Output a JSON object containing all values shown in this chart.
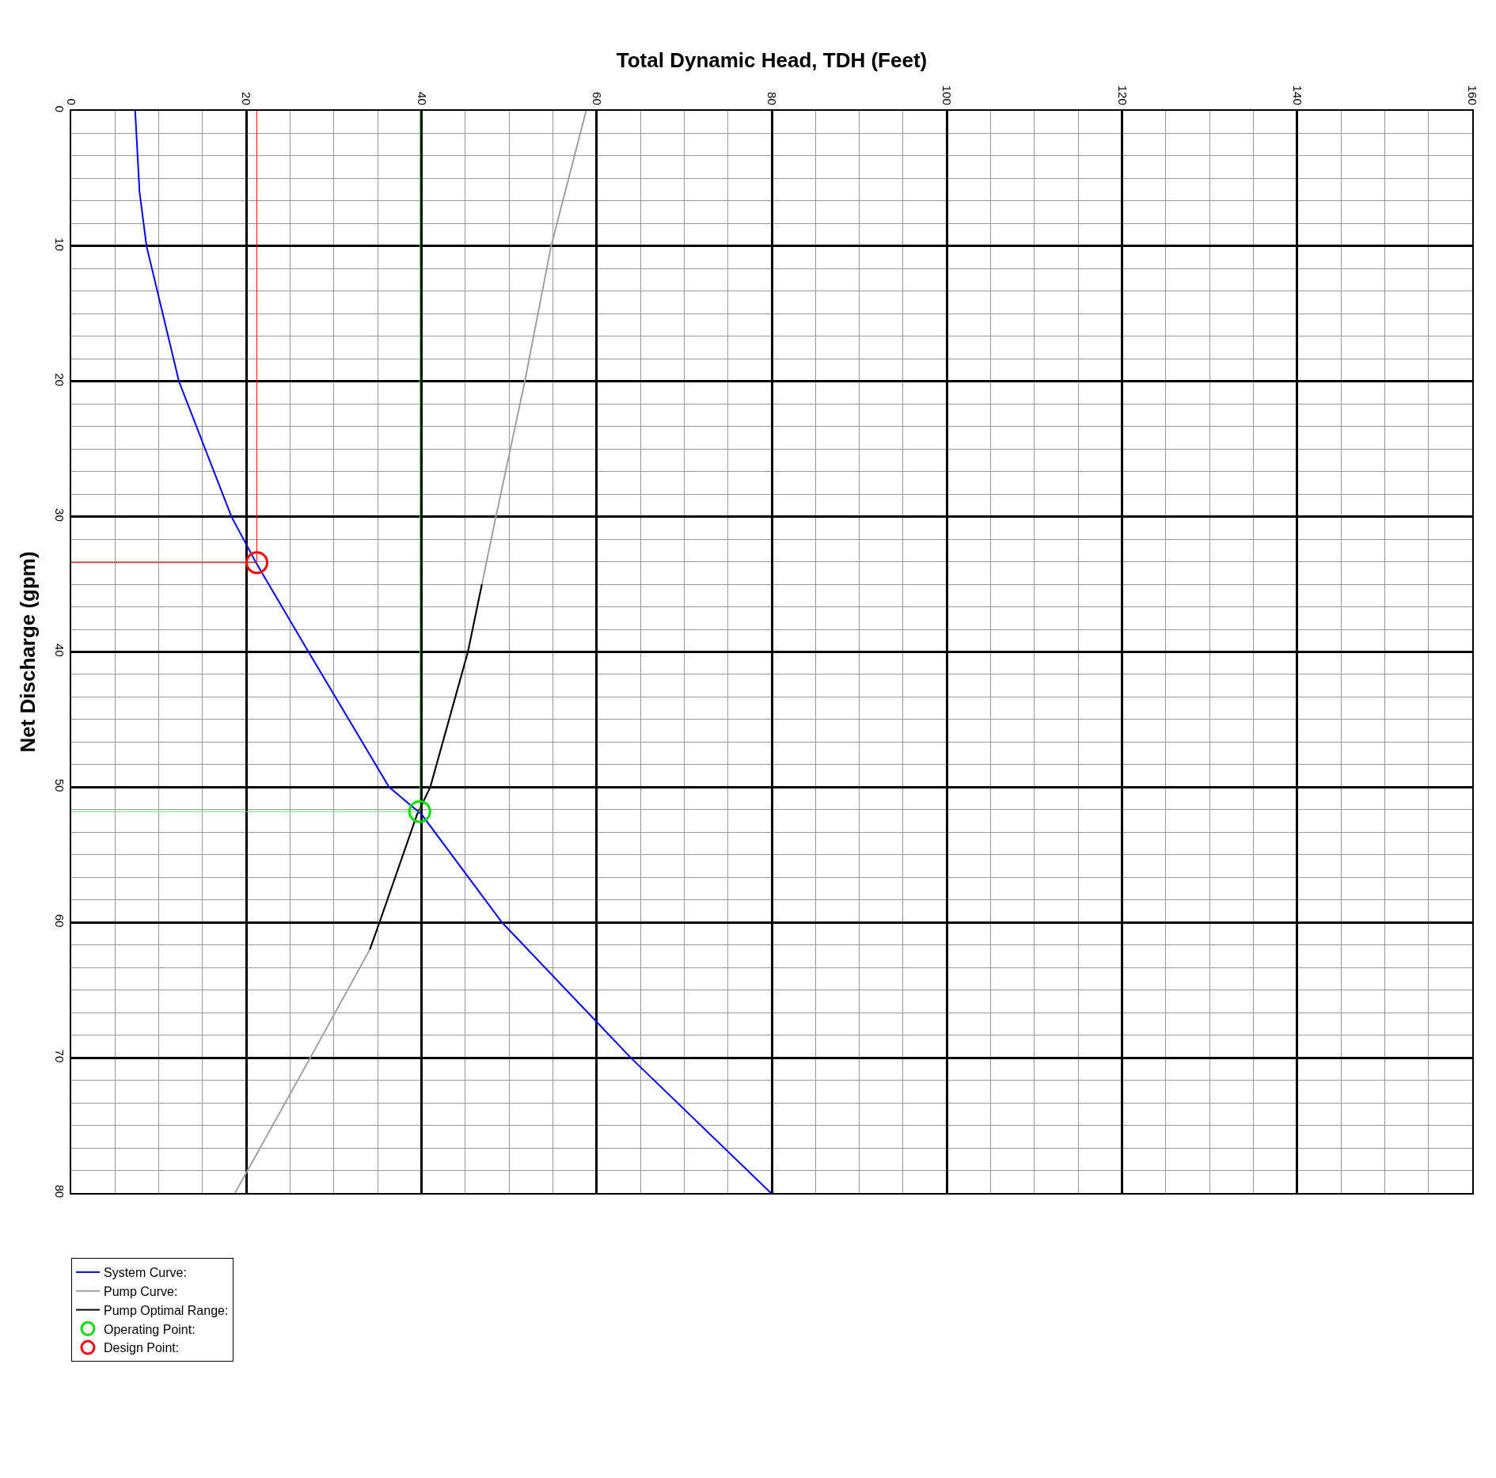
{
  "chart_data": {
    "type": "line",
    "xlabel": "Total Dynamic Head, TDH (Feet)",
    "ylabel": "Net Discharge (gpm)",
    "xlim": [
      0,
      160
    ],
    "xticks": [
      0,
      20,
      40,
      60,
      80,
      100,
      120,
      140,
      160
    ],
    "ylim": [
      80,
      0
    ],
    "yticks": [
      0,
      10,
      20,
      30,
      40,
      50,
      60,
      70,
      80
    ],
    "grid": true,
    "legend": "bottom left",
    "series": [
      {
        "name": "System Curve:",
        "color": "#0000ff",
        "x": [
          7.3,
          7.8,
          8.6,
          12.3,
          18.3,
          21.1,
          27.1,
          36.3,
          40.0,
          49.2,
          63.9,
          79.9
        ],
        "values": [
          0,
          6,
          10,
          20,
          30,
          33.4,
          40,
          50,
          52,
          60,
          70,
          80
        ]
      },
      {
        "name": "Pump Curve:",
        "color": "#a0a0a0",
        "x": [
          58.8,
          54.8,
          51.8,
          48.5,
          46.9,
          45.3,
          41.0,
          39.5,
          35.2,
          34.1,
          27.3,
          18.7
        ],
        "values": [
          0,
          10,
          20,
          30,
          35,
          40,
          50,
          52,
          60,
          62,
          70,
          80
        ]
      },
      {
        "name": "Pump Optimal Range:",
        "color": "#000000",
        "x": [
          46.9,
          45.3,
          41.0,
          39.5,
          35.2,
          34.1
        ],
        "values": [
          35,
          40,
          50,
          52,
          60,
          62
        ]
      },
      {
        "color": "#ff0000",
        "x": [
          21.2,
          21.2,
          0
        ],
        "values": [
          0,
          33.4,
          33.4
        ]
      },
      {
        "color": "#66dd66",
        "x": [
          39.8,
          39.8,
          0
        ],
        "values": [
          0,
          51.8,
          51.8
        ]
      },
      {
        "name": "Operating Point:",
        "color": "#00dd00",
        "type": "scatter",
        "marker": "circle",
        "x": [
          39.8
        ],
        "values": [
          51.8
        ]
      },
      {
        "name": "Design Point:",
        "color": "#ff0000",
        "type": "scatter",
        "marker": "circle",
        "x": [
          21.2
        ],
        "values": [
          33.4
        ]
      }
    ]
  }
}
